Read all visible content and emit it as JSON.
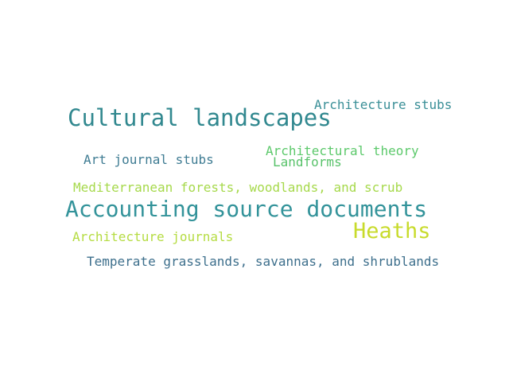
{
  "words": [
    {
      "text": "Architecture stubs",
      "color": "#3a8f97"
    },
    {
      "text": "Cultural landscapes",
      "color": "#31888f"
    },
    {
      "text": "Architectural theory",
      "color": "#5cc96b"
    },
    {
      "text": "Art journal stubs",
      "color": "#3f7c93"
    },
    {
      "text": "Landforms",
      "color": "#58c26a"
    },
    {
      "text": "Mediterranean forests, woodlands, and scrub",
      "color": "#a6d94b"
    },
    {
      "text": "Accounting source documents",
      "color": "#33939a"
    },
    {
      "text": "Heaths",
      "color": "#c8db2c"
    },
    {
      "text": "Architecture journals",
      "color": "#b5dc42"
    },
    {
      "text": "Temperate grasslands, savannas, and shrublands",
      "color": "#3d6f8c"
    }
  ]
}
